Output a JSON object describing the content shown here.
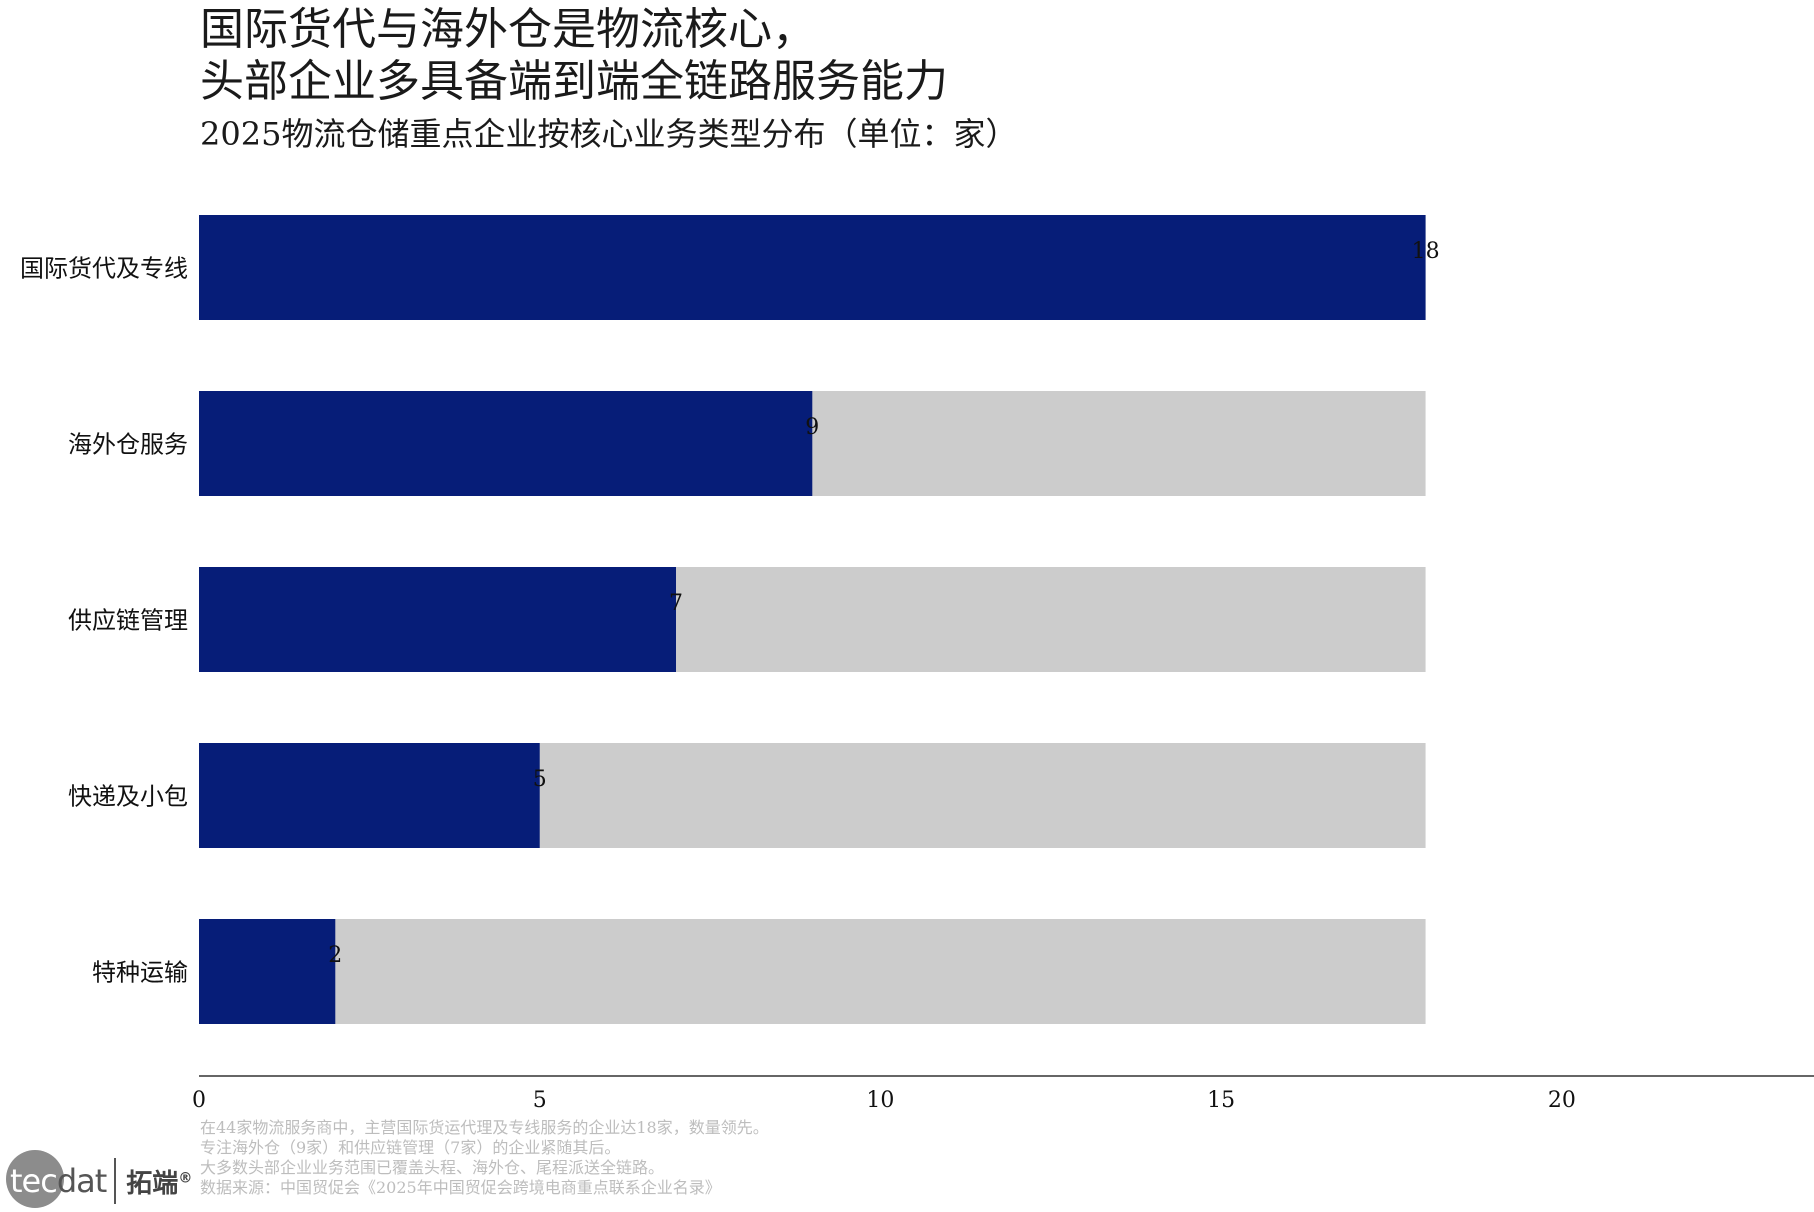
{
  "title_lines": [
    "国际货代与海外仓是物流核心，",
    "头部企业多具备端到端全链路服务能力"
  ],
  "subtitle": "2025物流仓储重点企业按核心业务类型分布（单位：家）",
  "chart_data": {
    "type": "bar",
    "orientation": "horizontal",
    "categories": [
      "国际货代及专线",
      "海外仓服务",
      "供应链管理",
      "快递及小包",
      "特种运输"
    ],
    "values": [
      18,
      9,
      7,
      5,
      2
    ],
    "background_track_max": 18,
    "xlim": [
      0,
      23.7
    ],
    "xticks": [
      0,
      5,
      10,
      15,
      20
    ],
    "grid": false,
    "data_labels": true,
    "colors": {
      "bar": "#061d78",
      "track": "#cccccc",
      "axis": "#333333"
    }
  },
  "notes": [
    "在44家物流服务商中，主营国际货运代理及专线服务的企业达18家，数量领先。",
    "专注海外仓（9家）和供应链管理（7家）的企业紧随其后。",
    "大多数头部企业业务范围已覆盖头程、海外仓、尾程派送全链路。",
    "数据来源：中国贸促会《2025年中国贸促会跨境电商重点联系企业名录》"
  ],
  "logo": {
    "prefix": "tec",
    "suffix": "dat",
    "cn": "拓端",
    "mark": "®"
  }
}
